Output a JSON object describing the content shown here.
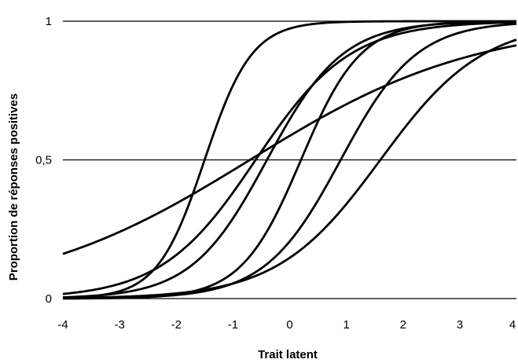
{
  "chart_data": {
    "type": "line",
    "title": "",
    "xlabel": "Trait latent",
    "ylabel": "Proportion de réponses positives",
    "xlim": [
      -4,
      4
    ],
    "ylim": [
      0,
      1
    ],
    "x_ticks": [
      "-4",
      "-3",
      "-2",
      "-1",
      "0",
      "1",
      "2",
      "3",
      "4"
    ],
    "y_ticks": [
      {
        "value": 0,
        "label": "0"
      },
      {
        "value": 0.5,
        "label": "0,5"
      },
      {
        "value": 1,
        "label": "1"
      }
    ],
    "grid": "horizontal",
    "legend": "none",
    "line_color": "#000000",
    "series": [
      {
        "model": "logistic",
        "a": 2.4,
        "b": -1.5
      },
      {
        "model": "logistic",
        "a": 1.9,
        "b": 0.2
      },
      {
        "model": "logistic",
        "a": 1.5,
        "b": -0.4
      },
      {
        "model": "logistic",
        "a": 1.2,
        "b": -0.6
      },
      {
        "model": "logistic",
        "a": 0.5,
        "b": -0.7
      },
      {
        "model": "logistic",
        "a": 1.5,
        "b": 0.9
      },
      {
        "model": "logistic",
        "a": 1.1,
        "b": 1.6
      }
    ]
  }
}
